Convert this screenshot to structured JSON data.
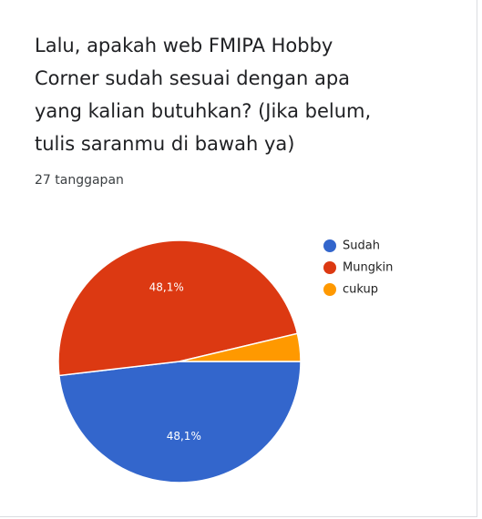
{
  "question": {
    "title": "Lalu, apakah web FMIPA Hobby\nCorner sudah sesuai dengan apa\nyang kalian butuhkan? (Jika belum,\ntulis saranmu di bawah ya)",
    "responses_label": "27 tanggapan"
  },
  "chart_data": {
    "type": "pie",
    "categories": [
      "Sudah",
      "Mungkin",
      "cukup"
    ],
    "values": [
      48.1,
      48.1,
      3.7
    ],
    "value_labels": [
      "48,1%",
      "48,1%",
      ""
    ],
    "colors": [
      "#3366cc",
      "#dc3912",
      "#ff9900"
    ],
    "legend_position": "right"
  }
}
